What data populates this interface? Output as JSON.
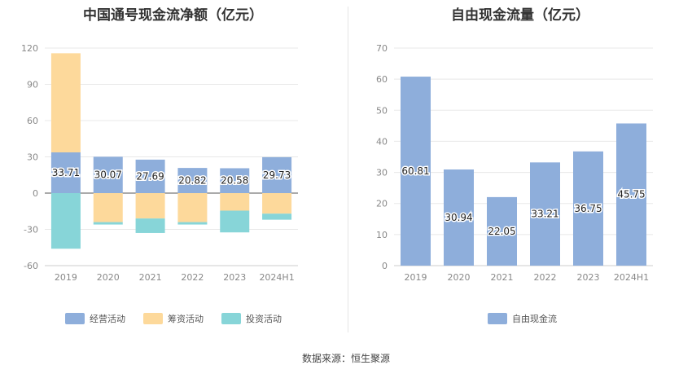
{
  "source": "数据来源：恒生聚源",
  "colors": {
    "operating": "#8eaedb",
    "financing": "#fdd99b",
    "investing": "#87d5d8",
    "fcf": "#8eaedb"
  },
  "chart_data": [
    {
      "type": "bar",
      "stacked": true,
      "title": "中国通号现金流净额（亿元）",
      "categories": [
        "2019",
        "2020",
        "2021",
        "2022",
        "2023",
        "2024H1"
      ],
      "ylim": [
        -60,
        120
      ],
      "yticks": [
        -60,
        -30,
        0,
        30,
        60,
        90,
        120
      ],
      "grid": true,
      "legend": "bottom",
      "series": [
        {
          "name": "经营活动",
          "values": [
            33.71,
            30.07,
            27.69,
            20.82,
            20.58,
            29.73
          ],
          "labels": [
            "33.71",
            "30.07",
            "27.69",
            "20.82",
            "20.58",
            "29.73"
          ]
        },
        {
          "name": "筹资活动",
          "values": [
            82,
            -24,
            -21,
            -24,
            -14.5,
            -17
          ]
        },
        {
          "name": "投资活动",
          "values": [
            -46,
            -2,
            -12,
            -2,
            -18,
            -5
          ]
        }
      ]
    },
    {
      "type": "bar",
      "title": "自由现金流量（亿元）",
      "categories": [
        "2019",
        "2020",
        "2021",
        "2022",
        "2023",
        "2024H1"
      ],
      "ylim": [
        0,
        70
      ],
      "yticks": [
        0,
        10,
        20,
        30,
        40,
        50,
        60,
        70
      ],
      "grid": true,
      "legend": "bottom",
      "series": [
        {
          "name": "自由现金流",
          "values": [
            60.81,
            30.94,
            22.05,
            33.21,
            36.75,
            45.75
          ],
          "labels": [
            "60.81",
            "30.94",
            "22.05",
            "33.21",
            "36.75",
            "45.75"
          ]
        }
      ]
    }
  ]
}
